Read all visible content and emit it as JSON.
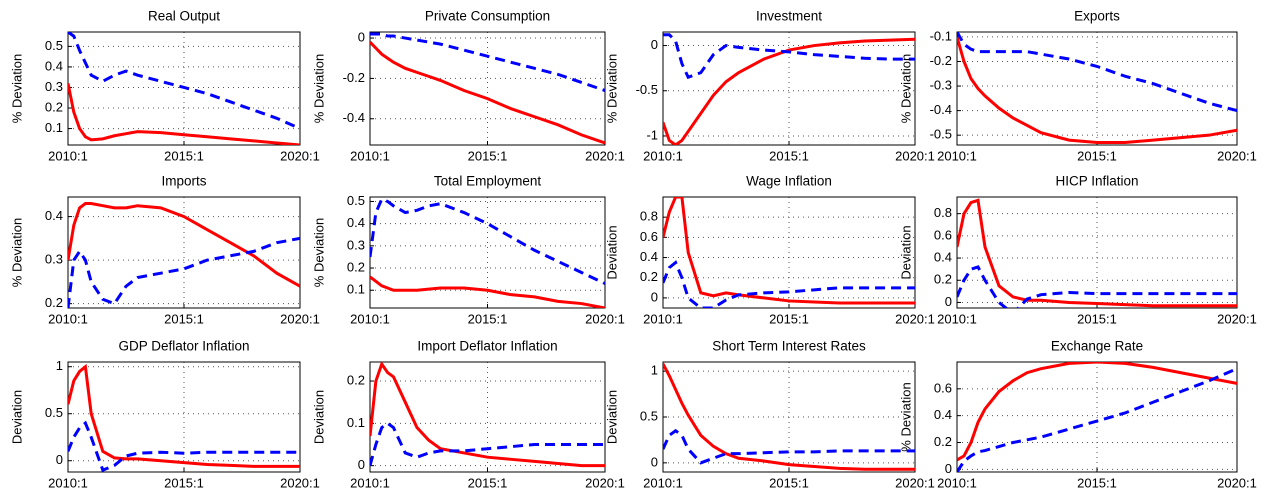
{
  "chart_data": [
    {
      "type": "line",
      "title": "Real Output",
      "ylabel": "% Deviation",
      "grid": true,
      "x": [
        2010,
        2010.25,
        2010.5,
        2010.75,
        2011,
        2011.5,
        2012,
        2012.5,
        2013,
        2014,
        2015,
        2016,
        2017,
        2018,
        2019,
        2020
      ],
      "xlim": [
        2010,
        2020
      ],
      "xticks": [
        {
          "value": 2010,
          "label": "2010:1"
        },
        {
          "value": 2015,
          "label": "2015:1"
        },
        {
          "value": 2020,
          "label": "2020:1"
        }
      ],
      "ylim": [
        0.02,
        0.57
      ],
      "yticks": [
        0.1,
        0.2,
        0.3,
        0.4,
        0.5
      ],
      "series": [
        {
          "color": "#ff0000",
          "linestyle": "solid",
          "values": [
            0.32,
            0.18,
            0.1,
            0.06,
            0.045,
            0.05,
            0.065,
            0.075,
            0.085,
            0.08,
            0.07,
            0.06,
            0.05,
            0.04,
            0.03,
            0.02
          ]
        },
        {
          "color": "#0000ff",
          "linestyle": "dashed",
          "values": [
            0.57,
            0.55,
            0.48,
            0.42,
            0.36,
            0.33,
            0.36,
            0.38,
            0.36,
            0.33,
            0.3,
            0.27,
            0.23,
            0.19,
            0.15,
            0.1
          ]
        }
      ]
    },
    {
      "type": "line",
      "title": "Private Consumption",
      "ylabel": "% Deviation",
      "grid": true,
      "x": [
        2010,
        2010.25,
        2010.5,
        2010.75,
        2011,
        2011.5,
        2012,
        2012.5,
        2013,
        2014,
        2015,
        2016,
        2017,
        2018,
        2019,
        2020
      ],
      "xlim": [
        2010,
        2020
      ],
      "xticks": [
        {
          "value": 2010,
          "label": "2010:1"
        },
        {
          "value": 2015,
          "label": "2015:1"
        },
        {
          "value": 2020,
          "label": "2020:1"
        }
      ],
      "ylim": [
        -0.53,
        0.03
      ],
      "yticks": [
        -0.4,
        -0.2,
        0
      ],
      "series": [
        {
          "color": "#ff0000",
          "linestyle": "solid",
          "values": [
            -0.02,
            -0.05,
            -0.08,
            -0.1,
            -0.12,
            -0.15,
            -0.17,
            -0.19,
            -0.21,
            -0.26,
            -0.3,
            -0.35,
            -0.39,
            -0.43,
            -0.48,
            -0.52
          ]
        },
        {
          "color": "#0000ff",
          "linestyle": "dashed",
          "values": [
            0.02,
            0.02,
            0.02,
            0.01,
            0.01,
            0,
            -0.01,
            -0.02,
            -0.03,
            -0.06,
            -0.09,
            -0.12,
            -0.15,
            -0.18,
            -0.22,
            -0.26
          ]
        }
      ]
    },
    {
      "type": "line",
      "title": "Investment",
      "ylabel": "% Deviation",
      "grid": true,
      "x": [
        2010,
        2010.25,
        2010.5,
        2010.75,
        2011,
        2011.5,
        2012,
        2012.5,
        2013,
        2014,
        2015,
        2016,
        2017,
        2018,
        2019,
        2020
      ],
      "xlim": [
        2010,
        2020
      ],
      "xticks": [
        {
          "value": 2010,
          "label": "2010:1"
        },
        {
          "value": 2015,
          "label": "2015:1"
        },
        {
          "value": 2020,
          "label": "2020:1"
        }
      ],
      "ylim": [
        -1.1,
        0.15
      ],
      "yticks": [
        -1,
        -0.5,
        0
      ],
      "series": [
        {
          "color": "#ff0000",
          "linestyle": "solid",
          "values": [
            -0.85,
            -1.05,
            -1.1,
            -1.05,
            -0.95,
            -0.75,
            -0.55,
            -0.4,
            -0.3,
            -0.15,
            -0.05,
            0,
            0.03,
            0.05,
            0.06,
            0.07
          ]
        },
        {
          "color": "#0000ff",
          "linestyle": "dashed",
          "values": [
            0.12,
            0.12,
            0.05,
            -0.2,
            -0.35,
            -0.3,
            -0.1,
            0,
            -0.02,
            -0.05,
            -0.07,
            -0.1,
            -0.12,
            -0.14,
            -0.15,
            -0.15
          ]
        }
      ]
    },
    {
      "type": "line",
      "title": "Exports",
      "ylabel": "% Deviation",
      "grid": true,
      "x": [
        2010,
        2010.25,
        2010.5,
        2010.75,
        2011,
        2011.5,
        2012,
        2012.5,
        2013,
        2014,
        2015,
        2016,
        2017,
        2018,
        2019,
        2020
      ],
      "xlim": [
        2010,
        2020
      ],
      "xticks": [
        {
          "value": 2010,
          "label": "2010:1"
        },
        {
          "value": 2015,
          "label": "2015:1"
        },
        {
          "value": 2020,
          "label": "2020:1"
        }
      ],
      "ylim": [
        -0.54,
        -0.08
      ],
      "yticks": [
        -0.5,
        -0.4,
        -0.3,
        -0.2,
        -0.1
      ],
      "series": [
        {
          "color": "#ff0000",
          "linestyle": "solid",
          "values": [
            -0.1,
            -0.2,
            -0.27,
            -0.31,
            -0.34,
            -0.39,
            -0.43,
            -0.46,
            -0.49,
            -0.52,
            -0.53,
            -0.53,
            -0.52,
            -0.51,
            -0.5,
            -0.48
          ]
        },
        {
          "color": "#0000ff",
          "linestyle": "dashed",
          "values": [
            -0.08,
            -0.13,
            -0.15,
            -0.16,
            -0.16,
            -0.16,
            -0.16,
            -0.16,
            -0.17,
            -0.19,
            -0.22,
            -0.26,
            -0.29,
            -0.33,
            -0.37,
            -0.4
          ]
        }
      ]
    },
    {
      "type": "line",
      "title": "Imports",
      "ylabel": "% Deviation",
      "grid": true,
      "x": [
        2010,
        2010.25,
        2010.5,
        2010.75,
        2011,
        2011.5,
        2012,
        2012.5,
        2013,
        2014,
        2015,
        2016,
        2017,
        2018,
        2019,
        2020
      ],
      "xlim": [
        2010,
        2020
      ],
      "xticks": [
        {
          "value": 2010,
          "label": "2010:1"
        },
        {
          "value": 2015,
          "label": "2015:1"
        },
        {
          "value": 2020,
          "label": "2020:1"
        }
      ],
      "ylim": [
        0.19,
        0.445
      ],
      "yticks": [
        0.2,
        0.3,
        0.4
      ],
      "series": [
        {
          "color": "#ff0000",
          "linestyle": "solid",
          "values": [
            0.3,
            0.38,
            0.42,
            0.43,
            0.43,
            0.425,
            0.42,
            0.42,
            0.425,
            0.42,
            0.4,
            0.37,
            0.34,
            0.31,
            0.27,
            0.24
          ]
        },
        {
          "color": "#0000ff",
          "linestyle": "dashed",
          "values": [
            0.19,
            0.3,
            0.32,
            0.3,
            0.25,
            0.21,
            0.2,
            0.24,
            0.26,
            0.27,
            0.28,
            0.3,
            0.31,
            0.32,
            0.34,
            0.35
          ]
        }
      ]
    },
    {
      "type": "line",
      "title": "Total Employment",
      "ylabel": "% Deviation",
      "grid": true,
      "x": [
        2010,
        2010.25,
        2010.5,
        2010.75,
        2011,
        2011.5,
        2012,
        2012.5,
        2013,
        2014,
        2015,
        2016,
        2017,
        2018,
        2019,
        2020
      ],
      "xlim": [
        2010,
        2020
      ],
      "xticks": [
        {
          "value": 2010,
          "label": "2010:1"
        },
        {
          "value": 2015,
          "label": "2015:1"
        },
        {
          "value": 2020,
          "label": "2020:1"
        }
      ],
      "ylim": [
        0.02,
        0.52
      ],
      "yticks": [
        0.1,
        0.2,
        0.3,
        0.4,
        0.5
      ],
      "series": [
        {
          "color": "#ff0000",
          "linestyle": "solid",
          "values": [
            0.16,
            0.14,
            0.12,
            0.11,
            0.1,
            0.1,
            0.1,
            0.105,
            0.11,
            0.11,
            0.1,
            0.08,
            0.07,
            0.05,
            0.04,
            0.02
          ]
        },
        {
          "color": "#0000ff",
          "linestyle": "dashed",
          "values": [
            0.25,
            0.45,
            0.51,
            0.5,
            0.48,
            0.45,
            0.46,
            0.48,
            0.49,
            0.45,
            0.4,
            0.34,
            0.28,
            0.23,
            0.18,
            0.13
          ]
        }
      ]
    },
    {
      "type": "line",
      "title": "Wage Inflation",
      "ylabel": "Deviation",
      "grid": true,
      "x": [
        2010,
        2010.25,
        2010.5,
        2010.75,
        2011,
        2011.5,
        2012,
        2012.5,
        2013,
        2014,
        2015,
        2016,
        2017,
        2018,
        2019,
        2020
      ],
      "xlim": [
        2010,
        2020
      ],
      "xticks": [
        {
          "value": 2010,
          "label": "2010:1"
        },
        {
          "value": 2015,
          "label": "2015:1"
        },
        {
          "value": 2020,
          "label": "2020:1"
        }
      ],
      "ylim": [
        -0.1,
        1.0
      ],
      "yticks": [
        0,
        0.2,
        0.4,
        0.6,
        0.8
      ],
      "series": [
        {
          "color": "#ff0000",
          "linestyle": "solid",
          "values": [
            0.6,
            0.85,
            1.0,
            1.0,
            0.45,
            0.05,
            0.02,
            0.05,
            0.03,
            0,
            -0.03,
            -0.04,
            -0.05,
            -0.05,
            -0.05,
            -0.05
          ]
        },
        {
          "color": "#0000ff",
          "linestyle": "dashed",
          "values": [
            0.15,
            0.3,
            0.35,
            0.2,
            0,
            -0.1,
            -0.1,
            -0.02,
            0.03,
            0.05,
            0.06,
            0.08,
            0.1,
            0.1,
            0.1,
            0.1
          ]
        }
      ]
    },
    {
      "type": "line",
      "title": "HICP Inflation",
      "ylabel": "Deviation",
      "grid": true,
      "x": [
        2010,
        2010.25,
        2010.5,
        2010.75,
        2011,
        2011.5,
        2012,
        2012.5,
        2013,
        2014,
        2015,
        2016,
        2017,
        2018,
        2019,
        2020
      ],
      "xlim": [
        2010,
        2020
      ],
      "xticks": [
        {
          "value": 2010,
          "label": "2010:1"
        },
        {
          "value": 2015,
          "label": "2015:1"
        },
        {
          "value": 2020,
          "label": "2020:1"
        }
      ],
      "ylim": [
        -0.05,
        0.95
      ],
      "yticks": [
        0,
        0.2,
        0.4,
        0.6,
        0.8
      ],
      "series": [
        {
          "color": "#ff0000",
          "linestyle": "solid",
          "values": [
            0.5,
            0.8,
            0.9,
            0.92,
            0.5,
            0.15,
            0.05,
            0.02,
            0.02,
            0,
            -0.01,
            -0.02,
            -0.03,
            -0.03,
            -0.03,
            -0.03
          ]
        },
        {
          "color": "#0000ff",
          "linestyle": "dashed",
          "values": [
            0.05,
            0.2,
            0.3,
            0.32,
            0.2,
            0,
            -0.1,
            0.03,
            0.07,
            0.09,
            0.08,
            0.08,
            0.08,
            0.08,
            0.08,
            0.08
          ]
        }
      ]
    },
    {
      "type": "line",
      "title": "GDP Deflator Inflation",
      "ylabel": "Deviation",
      "grid": true,
      "x": [
        2010,
        2010.25,
        2010.5,
        2010.75,
        2011,
        2011.5,
        2012,
        2012.5,
        2013,
        2014,
        2015,
        2016,
        2017,
        2018,
        2019,
        2020
      ],
      "xlim": [
        2010,
        2020
      ],
      "xticks": [
        {
          "value": 2010,
          "label": "2010:1"
        },
        {
          "value": 2015,
          "label": "2015:1"
        },
        {
          "value": 2020,
          "label": "2020:1"
        }
      ],
      "ylim": [
        -0.12,
        1.05
      ],
      "yticks": [
        0,
        0.5,
        1
      ],
      "series": [
        {
          "color": "#ff0000",
          "linestyle": "solid",
          "values": [
            0.6,
            0.85,
            0.95,
            1.0,
            0.5,
            0.1,
            0.03,
            0.02,
            0.02,
            0,
            -0.02,
            -0.04,
            -0.05,
            -0.06,
            -0.06,
            -0.06
          ]
        },
        {
          "color": "#0000ff",
          "linestyle": "dashed",
          "values": [
            0.1,
            0.25,
            0.35,
            0.4,
            0.25,
            -0.1,
            -0.05,
            0.05,
            0.08,
            0.09,
            0.08,
            0.09,
            0.09,
            0.09,
            0.09,
            0.09
          ]
        }
      ]
    },
    {
      "type": "line",
      "title": "Import Deflator Inflation",
      "ylabel": "Deviation",
      "grid": true,
      "x": [
        2010,
        2010.25,
        2010.5,
        2010.75,
        2011,
        2011.5,
        2012,
        2012.5,
        2013,
        2014,
        2015,
        2016,
        2017,
        2018,
        2019,
        2020
      ],
      "xlim": [
        2010,
        2020
      ],
      "xticks": [
        {
          "value": 2010,
          "label": "2010:1"
        },
        {
          "value": 2015,
          "label": "2015:1"
        },
        {
          "value": 2020,
          "label": "2020:1"
        }
      ],
      "ylim": [
        -0.015,
        0.245
      ],
      "yticks": [
        0,
        0.1,
        0.2
      ],
      "series": [
        {
          "color": "#ff0000",
          "linestyle": "solid",
          "values": [
            0.07,
            0.2,
            0.24,
            0.22,
            0.21,
            0.15,
            0.09,
            0.06,
            0.04,
            0.03,
            0.02,
            0.015,
            0.01,
            0.005,
            0,
            0
          ]
        },
        {
          "color": "#0000ff",
          "linestyle": "dashed",
          "values": [
            0,
            0.05,
            0.09,
            0.1,
            0.09,
            0.03,
            0.02,
            0.03,
            0.035,
            0.035,
            0.04,
            0.045,
            0.05,
            0.05,
            0.05,
            0.05
          ]
        }
      ]
    },
    {
      "type": "line",
      "title": "Short Term Interest Rates",
      "ylabel": "Deviation",
      "grid": true,
      "x": [
        2010,
        2010.25,
        2010.5,
        2010.75,
        2011,
        2011.5,
        2012,
        2012.5,
        2013,
        2014,
        2015,
        2016,
        2017,
        2018,
        2019,
        2020
      ],
      "xlim": [
        2010,
        2020
      ],
      "xticks": [
        {
          "value": 2010,
          "label": "2010:1"
        },
        {
          "value": 2015,
          "label": "2015:1"
        },
        {
          "value": 2020,
          "label": "2020:1"
        }
      ],
      "ylim": [
        -0.1,
        1.1
      ],
      "yticks": [
        0,
        0.5,
        1
      ],
      "series": [
        {
          "color": "#ff0000",
          "linestyle": "solid",
          "values": [
            1.08,
            0.95,
            0.8,
            0.65,
            0.52,
            0.3,
            0.18,
            0.1,
            0.05,
            0.02,
            -0.02,
            -0.04,
            -0.06,
            -0.07,
            -0.07,
            -0.07
          ]
        },
        {
          "color": "#0000ff",
          "linestyle": "dashed",
          "values": [
            0.15,
            0.3,
            0.35,
            0.3,
            0.15,
            0,
            0.05,
            0.1,
            0.1,
            0.11,
            0.12,
            0.12,
            0.13,
            0.13,
            0.13,
            0.13
          ]
        }
      ]
    },
    {
      "type": "line",
      "title": "Exchange Rate",
      "ylabel": "% Deviation",
      "grid": true,
      "x": [
        2010,
        2010.25,
        2010.5,
        2010.75,
        2011,
        2011.5,
        2012,
        2012.5,
        2013,
        2014,
        2015,
        2016,
        2017,
        2018,
        2019,
        2020
      ],
      "xlim": [
        2010,
        2020
      ],
      "xticks": [
        {
          "value": 2010,
          "label": "2010:1"
        },
        {
          "value": 2015,
          "label": "2015:1"
        },
        {
          "value": 2020,
          "label": "2020:1"
        }
      ],
      "ylim": [
        -0.02,
        0.8
      ],
      "yticks": [
        0,
        0.2,
        0.4,
        0.6
      ],
      "series": [
        {
          "color": "#ff0000",
          "linestyle": "solid",
          "values": [
            0.07,
            0.1,
            0.2,
            0.35,
            0.45,
            0.58,
            0.66,
            0.72,
            0.75,
            0.79,
            0.8,
            0.79,
            0.76,
            0.72,
            0.68,
            0.64
          ]
        },
        {
          "color": "#0000ff",
          "linestyle": "dashed",
          "values": [
            -0.02,
            0.06,
            0.1,
            0.13,
            0.14,
            0.17,
            0.2,
            0.22,
            0.24,
            0.3,
            0.36,
            0.42,
            0.5,
            0.58,
            0.66,
            0.75
          ]
        }
      ]
    }
  ]
}
